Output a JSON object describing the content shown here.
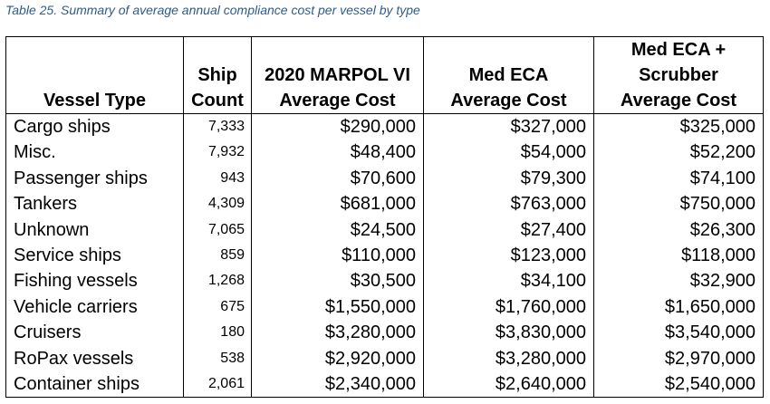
{
  "caption": "Table 25. Summary of average annual compliance cost per vessel by type",
  "headers": {
    "vessel_type": "Vessel Type",
    "ship_count_line1": "Ship",
    "ship_count_line2": "Count",
    "marpol_line1": "2020 MARPOL VI",
    "marpol_line2": "Average Cost",
    "eca_line1": "Med ECA",
    "eca_line2": "Average Cost",
    "scrubber_line1": "Med ECA +",
    "scrubber_line2": "Scrubber",
    "scrubber_line3": "Average Cost"
  },
  "rows": [
    {
      "type": "Cargo ships",
      "count": "7,333",
      "marpol": "$290,000",
      "eca": "$327,000",
      "scrubber": "$325,000"
    },
    {
      "type": "Misc.",
      "count": "7,932",
      "marpol": "$48,400",
      "eca": "$54,000",
      "scrubber": "$52,200"
    },
    {
      "type": "Passenger ships",
      "count": "943",
      "marpol": "$70,600",
      "eca": "$79,300",
      "scrubber": "$74,100"
    },
    {
      "type": "Tankers",
      "count": "4,309",
      "marpol": "$681,000",
      "eca": "$763,000",
      "scrubber": "$750,000"
    },
    {
      "type": "Unknown",
      "count": "7,065",
      "marpol": "$24,500",
      "eca": "$27,400",
      "scrubber": "$26,300"
    },
    {
      "type": "Service ships",
      "count": "859",
      "marpol": "$110,000",
      "eca": "$123,000",
      "scrubber": "$118,000"
    },
    {
      "type": "Fishing vessels",
      "count": "1,268",
      "marpol": "$30,500",
      "eca": "$34,100",
      "scrubber": "$32,900"
    },
    {
      "type": "Vehicle carriers",
      "count": "675",
      "marpol": "$1,550,000",
      "eca": "$1,760,000",
      "scrubber": "$1,650,000"
    },
    {
      "type": "Cruisers",
      "count": "180",
      "marpol": "$3,280,000",
      "eca": "$3,830,000",
      "scrubber": "$3,540,000"
    },
    {
      "type": "RoPax vessels",
      "count": "538",
      "marpol": "$2,920,000",
      "eca": "$3,280,000",
      "scrubber": "$2,970,000"
    },
    {
      "type": "Container ships",
      "count": "2,061",
      "marpol": "$2,340,000",
      "eca": "$2,640,000",
      "scrubber": "$2,540,000"
    }
  ]
}
